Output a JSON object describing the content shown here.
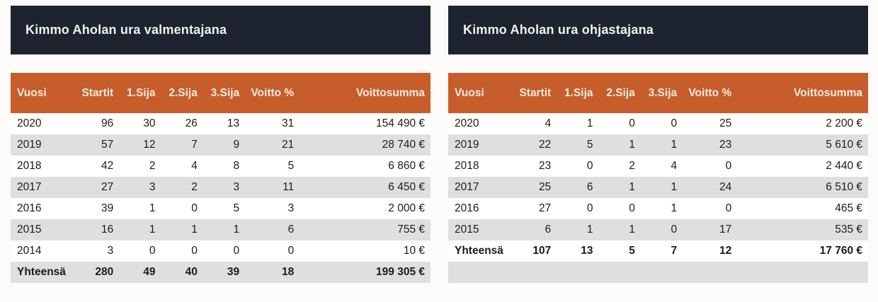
{
  "colors": {
    "page_background": "#fcfbf9",
    "title_bar_background": "#1d2430",
    "title_text": "#f4f1ea",
    "header_background": "#c75d2b",
    "header_text": "#f8ece1",
    "row_background": "#ffffff",
    "row_alt_background": "#e0dfdd",
    "data_text": "#1b1b1b"
  },
  "chart_data": [
    {
      "type": "table",
      "title": "Kimmo Aholan ura valmentajana",
      "columns": [
        "Vuosi",
        "Startit",
        "1.Sija",
        "2.Sija",
        "3.Sija",
        "Voitto %",
        "Voittosumma"
      ],
      "rows": [
        [
          "2020",
          "96",
          "30",
          "26",
          "13",
          "31",
          "154 490 €"
        ],
        [
          "2019",
          "57",
          "12",
          "7",
          "9",
          "21",
          "28 740 €"
        ],
        [
          "2018",
          "42",
          "2",
          "4",
          "8",
          "5",
          "6 860 €"
        ],
        [
          "2017",
          "27",
          "3",
          "2",
          "3",
          "11",
          "6 450 €"
        ],
        [
          "2016",
          "39",
          "1",
          "0",
          "5",
          "3",
          "2 000 €"
        ],
        [
          "2015",
          "16",
          "1",
          "1",
          "1",
          "6",
          "755 €"
        ],
        [
          "2014",
          "3",
          "0",
          "0",
          "0",
          "0",
          "10 €"
        ]
      ],
      "total_row": [
        "Yhteensä",
        "280",
        "49",
        "40",
        "39",
        "18",
        "199 305 €"
      ],
      "filler_row": false
    },
    {
      "type": "table",
      "title": "Kimmo Aholan ura ohjastajana",
      "columns": [
        "Vuosi",
        "Startit",
        "1.Sija",
        "2.Sija",
        "3.Sija",
        "Voitto %",
        "Voittosumma"
      ],
      "rows": [
        [
          "2020",
          "4",
          "1",
          "0",
          "0",
          "25",
          "2 200 €"
        ],
        [
          "2019",
          "22",
          "5",
          "1",
          "1",
          "23",
          "5 610 €"
        ],
        [
          "2018",
          "23",
          "0",
          "2",
          "4",
          "0",
          "2 440 €"
        ],
        [
          "2017",
          "25",
          "6",
          "1",
          "1",
          "24",
          "6 510 €"
        ],
        [
          "2016",
          "27",
          "0",
          "0",
          "1",
          "0",
          "465 €"
        ],
        [
          "2015",
          "6",
          "1",
          "1",
          "0",
          "17",
          "535 €"
        ]
      ],
      "total_row": [
        "Yhteensä",
        "107",
        "13",
        "5",
        "7",
        "12",
        "17 760 €"
      ],
      "filler_row": true
    }
  ]
}
